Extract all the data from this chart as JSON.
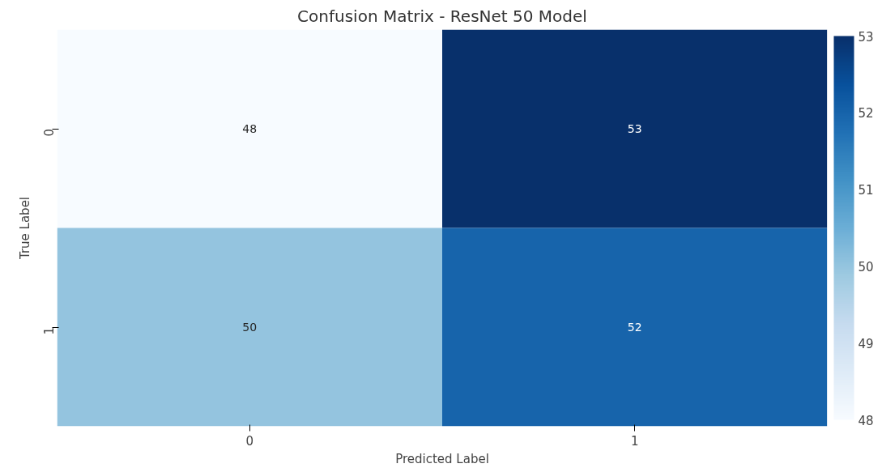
{
  "chart_data": {
    "type": "heatmap",
    "title": "Confusion Matrix - ResNet 50 Model",
    "xlabel": "Predicted Label",
    "ylabel": "True Label",
    "categories": [
      "0",
      "1"
    ],
    "y_categories": [
      "0",
      "1"
    ],
    "cells": [
      [
        48,
        53
      ],
      [
        50,
        52
      ]
    ],
    "clim": [
      48,
      53
    ],
    "cticks": [
      48,
      49,
      50,
      51,
      52,
      53
    ],
    "data_labels": true
  }
}
